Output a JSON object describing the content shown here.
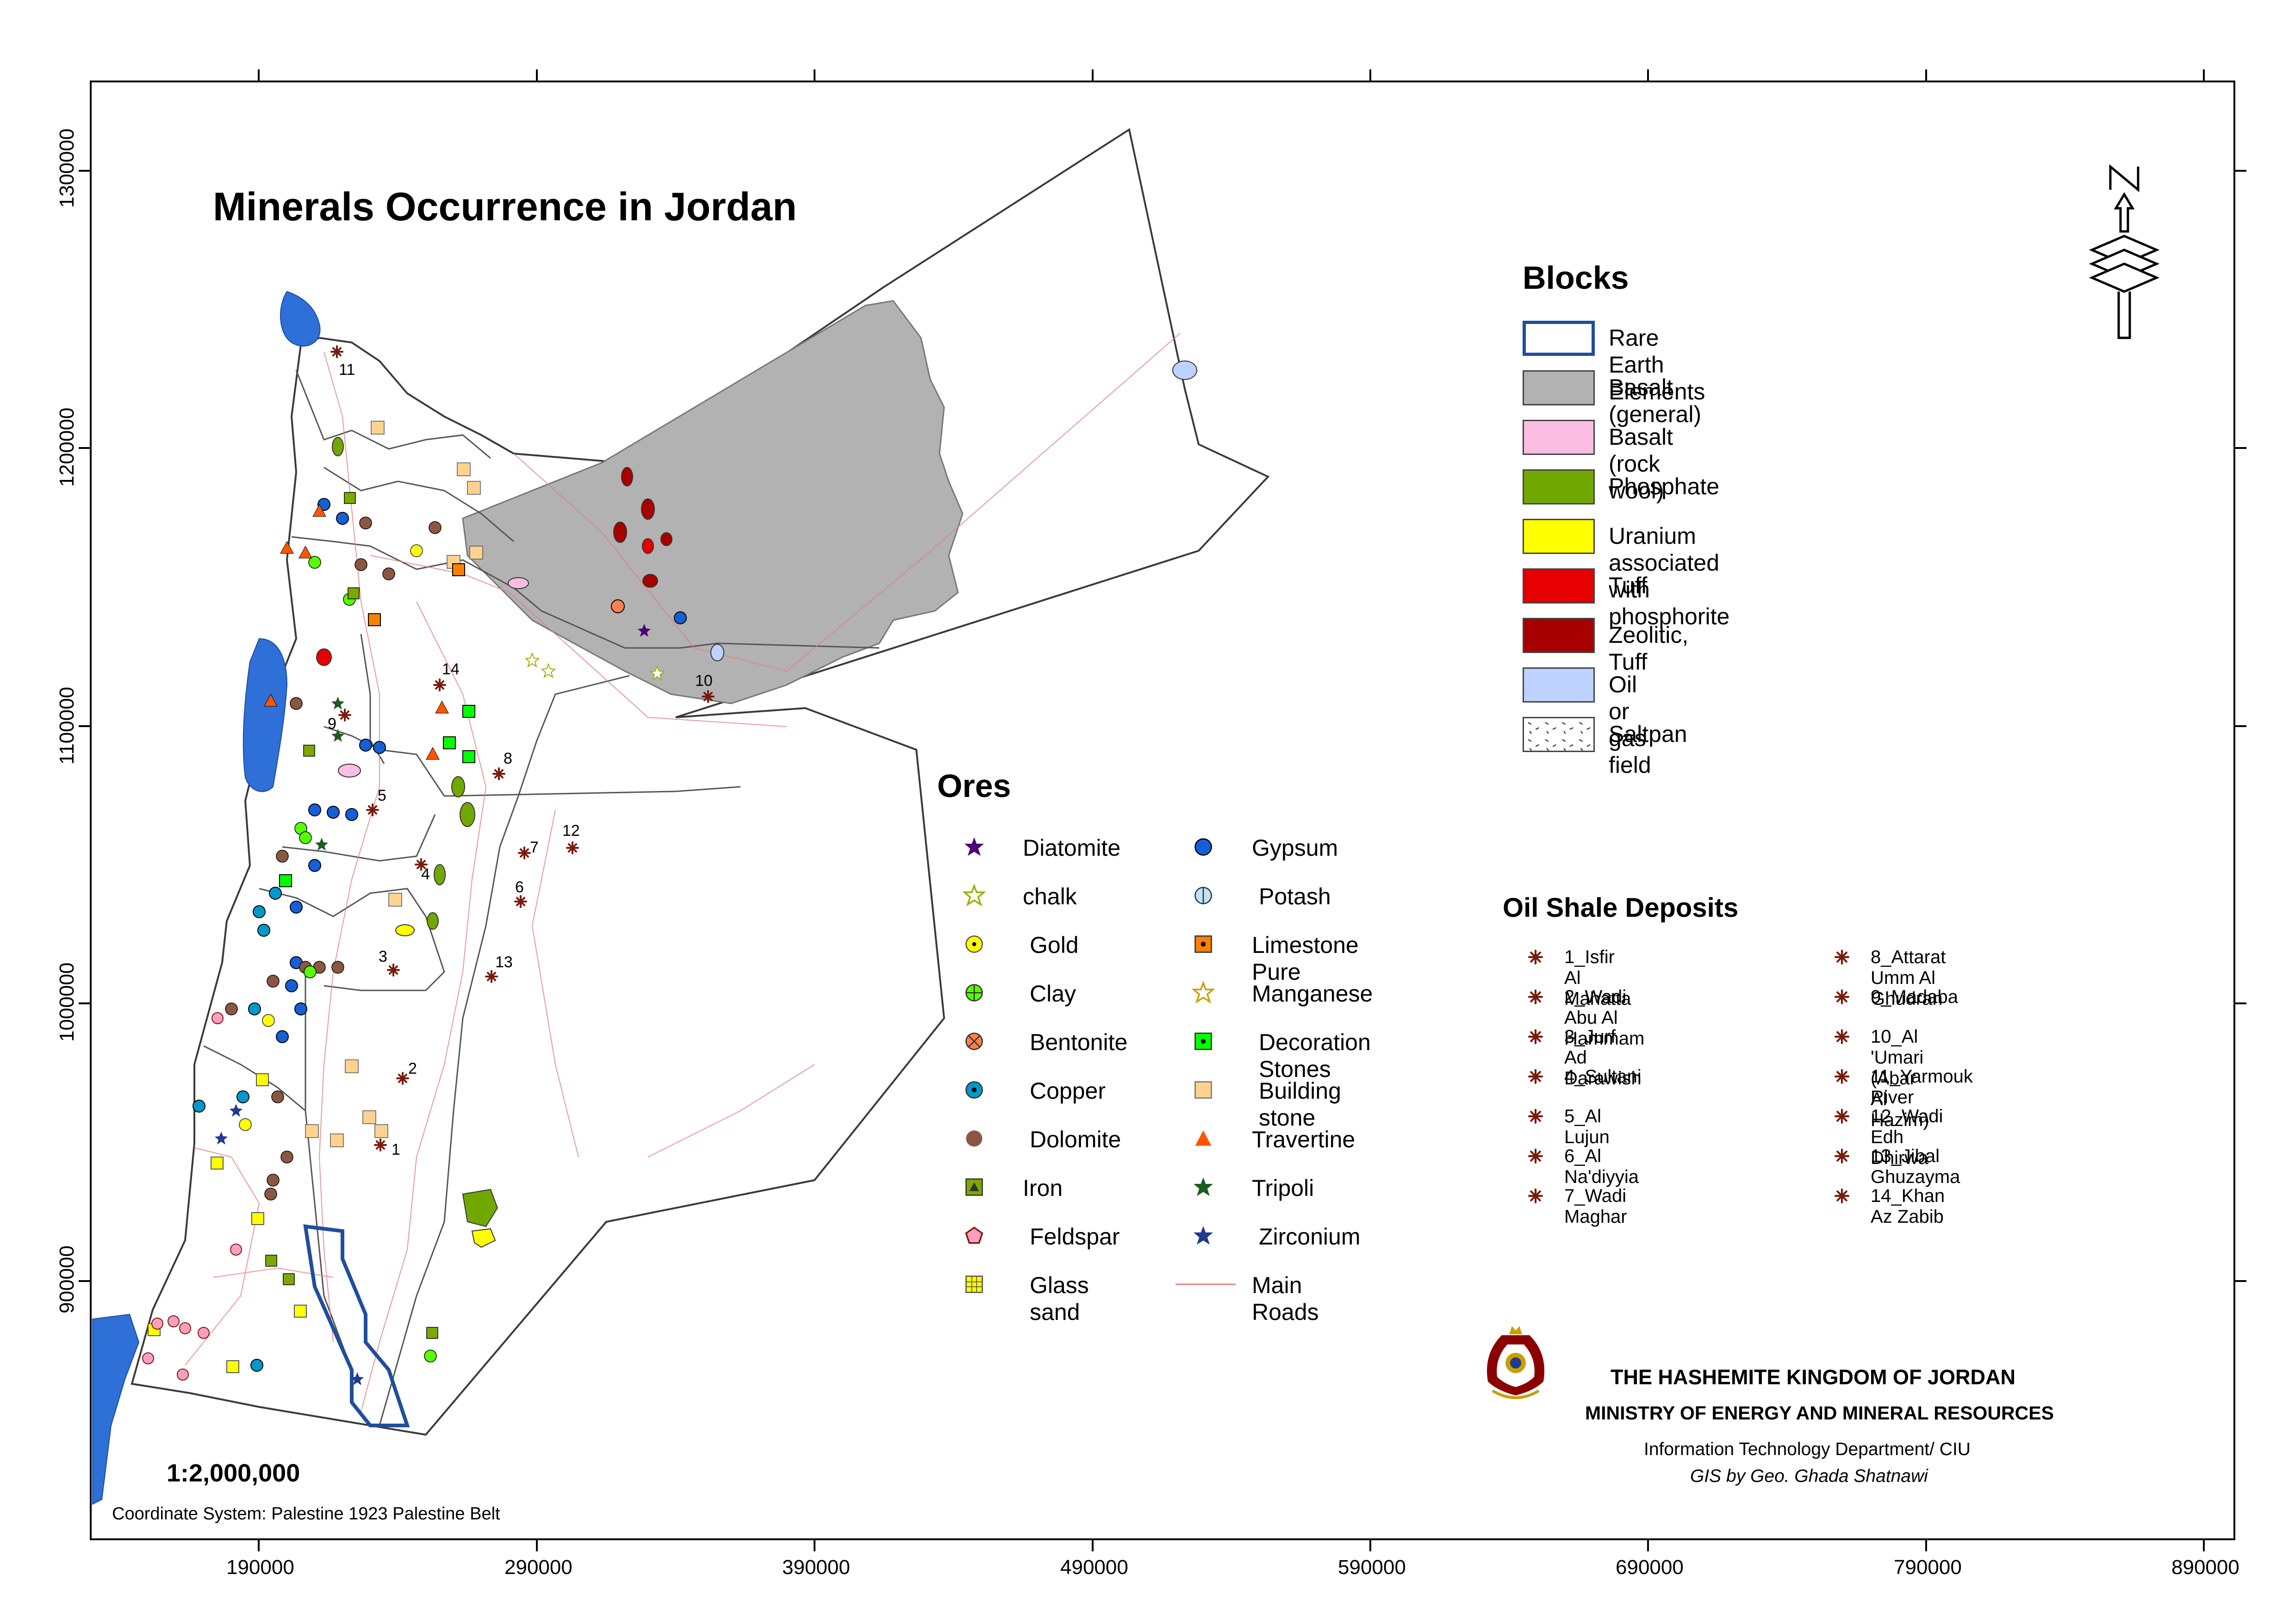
{
  "title": "Minerals Occurrence in Jordan",
  "scale": "1:2,000,000",
  "coordinate_system": "Coordinate System: Palestine 1923 Palestine Belt",
  "axis": {
    "x_ticks": [
      "190000",
      "290000",
      "390000",
      "490000",
      "590000",
      "690000",
      "790000",
      "890000"
    ],
    "y_ticks": [
      "1300000",
      "1200000",
      "1100000",
      "1000000",
      "900000"
    ]
  },
  "north_arrow": {
    "letter": "N",
    "icon": "north-arrow-icon"
  },
  "blocks": {
    "heading": "Blocks",
    "items": [
      {
        "label": "Rare Earth Elements",
        "fill": "#ffffff",
        "stroke": "#1f4e9c"
      },
      {
        "label": "Basalt (general)",
        "fill": "#b2b2b2",
        "stroke": "#555555"
      },
      {
        "label": "Basalt (rock wool)",
        "fill": "#fcbde3",
        "stroke": "#555555"
      },
      {
        "label": "Phosphate",
        "fill": "#70a800",
        "stroke": "#555555"
      },
      {
        "label": "Uranium associated with phosphorite",
        "fill": "#ffff00",
        "stroke": "#555555"
      },
      {
        "label": "Tuff",
        "fill": "#e60000",
        "stroke": "#555555"
      },
      {
        "label": "Zeolitic, Tuff",
        "fill": "#a80000",
        "stroke": "#555555"
      },
      {
        "label": "Oil or gas field",
        "fill": "#bed2ff",
        "stroke": "#555555"
      },
      {
        "label": "Saltpan",
        "fill": "#ffffff",
        "stroke": "#555555",
        "pattern": "saltpan"
      }
    ]
  },
  "ores": {
    "heading": "Ores",
    "left_column": [
      {
        "label": "Diatomite",
        "icon": "star-icon",
        "color": "#4c0073"
      },
      {
        "label": "chalk",
        "icon": "star-outline-icon",
        "color": "#98b000"
      },
      {
        "label": "Gold",
        "icon": "dot-circle-icon",
        "color": "#ffff00"
      },
      {
        "label": "Clay",
        "icon": "cross-circle-icon",
        "color": "#55ff00"
      },
      {
        "label": "Bentonite",
        "icon": "x-circle-icon",
        "color": "#ff7f50"
      },
      {
        "label": "Copper",
        "icon": "dot-circle-icon",
        "color": "#0099cc"
      },
      {
        "label": "Dolomite",
        "icon": "circle-icon",
        "color": "#8b5742"
      },
      {
        "label": "Iron",
        "icon": "triangle-square-icon",
        "color": "#7ca800"
      },
      {
        "label": "Feldspar",
        "icon": "pentagon-icon",
        "color": "#ff9fbf"
      },
      {
        "label": "Glass sand",
        "icon": "grid-square-icon",
        "color": "#ffff00"
      }
    ],
    "right_column": [
      {
        "label": "Gypsum",
        "icon": "circle-icon",
        "color": "#1560d6"
      },
      {
        "label": "Potash",
        "icon": "half-circle-icon",
        "color": "#bfe3ff"
      },
      {
        "label": "Limestone Pure",
        "icon": "dot-square-icon",
        "color": "#ff7f00"
      },
      {
        "label": "Manganese",
        "icon": "star-outline-icon",
        "color": "#c8a000"
      },
      {
        "label": "Decoration Stones",
        "icon": "dot-square-icon",
        "color": "#00ff00"
      },
      {
        "label": "Building stone",
        "icon": "square-icon",
        "color": "#ffd38f"
      },
      {
        "label": "Travertine",
        "icon": "triangle-icon",
        "color": "#ff5500"
      },
      {
        "label": "Tripoli",
        "icon": "star-icon",
        "color": "#1e5c1e"
      },
      {
        "label": "Zirconium",
        "icon": "star-icon",
        "color": "#1f3a8f"
      },
      {
        "label": "Main Roads",
        "icon": "road-line-icon",
        "color": "#e08080"
      }
    ]
  },
  "oil_shale": {
    "heading": "Oil Shale Deposits",
    "left_column": [
      "1_Isfir Al Mahatta",
      "2_Wadi Abu Al Hammam",
      "3_Jurf Ad Darawish",
      "4_Sultani",
      "5_Al Lujun",
      "6_Al Na'diyyia",
      "7_Wadi Maghar"
    ],
    "right_column": [
      "8_Attarat Umm Al Ghudran",
      "9_Madaba",
      "10_Al 'Umari (Abar Al Hazim)",
      "11_Yarmouk River",
      "12_Wadi Edh Dhirwa",
      "13_Jibal Ghuzayma",
      "14_Khan Az Zabib"
    ],
    "icon": "asterisk-icon",
    "color": "#7a1a0a"
  },
  "map_labels": [
    "1",
    "2",
    "3",
    "4",
    "5",
    "6",
    "7",
    "8",
    "9",
    "10",
    "11",
    "12",
    "13",
    "14"
  ],
  "credits": {
    "line1": "THE HASHEMITE KINGDOM OF JORDAN",
    "line2": "MINISTRY OF ENERGY AND MINERAL RESOURCES",
    "line3": "Information Technology Department/ CIU",
    "line4": "GIS by Geo. Ghada Shatnawi"
  }
}
